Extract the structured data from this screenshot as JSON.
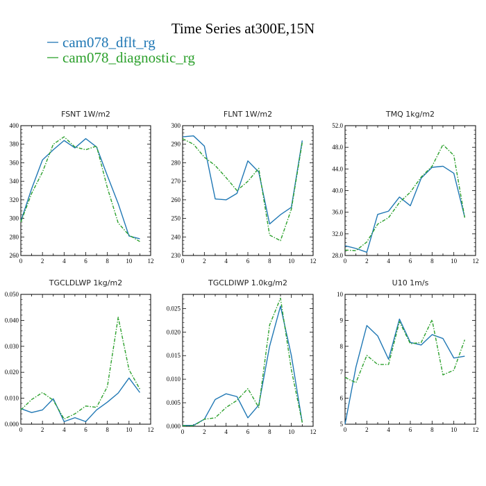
{
  "title": "Time Series at300E,15N",
  "legend": [
    {
      "name": "cam078_dflt_rg",
      "color": "#1f77b4"
    },
    {
      "name": "cam078_diagnostic_rg",
      "color": "#2ca02c"
    }
  ],
  "chart_data": [
    {
      "type": "line",
      "title": "FSNT   1W/m2",
      "xlim": [
        0,
        12
      ],
      "xticks": [
        0,
        2,
        4,
        6,
        8,
        10,
        12
      ],
      "xtick_labels": [
        "0",
        "2",
        "4",
        "6",
        "8",
        "10",
        "12"
      ],
      "ylim": [
        260,
        400
      ],
      "yticks": [
        260,
        280,
        300,
        320,
        340,
        360,
        380,
        400
      ],
      "ytick_labels": [
        "260",
        "280",
        "300",
        "320",
        "340",
        "360",
        "380",
        "400"
      ],
      "x": [
        0,
        1,
        2,
        3,
        4,
        5,
        6,
        7,
        8,
        9,
        10,
        11
      ],
      "series": [
        {
          "name": "cam078_dflt_rg",
          "values": [
            297,
            332,
            363,
            374,
            384,
            376,
            386,
            377,
            346,
            316,
            281,
            278
          ]
        },
        {
          "name": "cam078_diagnostic_rg",
          "values": [
            296,
            327,
            350,
            380,
            388,
            377,
            374,
            378,
            333,
            295,
            282,
            275
          ]
        }
      ]
    },
    {
      "type": "line",
      "title": "FLNT   1W/m2",
      "xlim": [
        0,
        12
      ],
      "xticks": [
        0,
        2,
        4,
        6,
        8,
        10,
        12
      ],
      "xtick_labels": [
        "0",
        "2",
        "4",
        "6",
        "8",
        "10",
        "12"
      ],
      "ylim": [
        230,
        300
      ],
      "yticks": [
        230,
        240,
        250,
        260,
        270,
        280,
        290,
        300
      ],
      "ytick_labels": [
        "230",
        "240",
        "250",
        "260",
        "270",
        "280",
        "290",
        "300"
      ],
      "x": [
        0,
        1,
        2,
        3,
        4,
        5,
        6,
        7,
        8,
        9,
        10,
        11
      ],
      "series": [
        {
          "name": "cam078_dflt_rg",
          "values": [
            294,
            294.5,
            289,
            260.5,
            260,
            263.5,
            281,
            275,
            247,
            252,
            256,
            292
          ]
        },
        {
          "name": "cam078_diagnostic_rg",
          "values": [
            293,
            290,
            283,
            278.5,
            272,
            265,
            270,
            277,
            241,
            238,
            255,
            291
          ]
        }
      ]
    },
    {
      "type": "line",
      "title": "TMQ   1kg/m2",
      "xlim": [
        0,
        12
      ],
      "xticks": [
        0,
        2,
        4,
        6,
        8,
        10,
        12
      ],
      "xtick_labels": [
        "0",
        "2",
        "4",
        "6",
        "8",
        "10",
        "12"
      ],
      "ylim": [
        28,
        52
      ],
      "yticks": [
        28,
        32,
        36,
        40,
        44,
        48,
        52
      ],
      "ytick_labels": [
        "28.0",
        "32.0",
        "36.0",
        "40.0",
        "44.0",
        "48.0",
        "52.0"
      ],
      "x": [
        0,
        1,
        2,
        3,
        4,
        5,
        6,
        7,
        8,
        9,
        10,
        11
      ],
      "series": [
        {
          "name": "cam078_dflt_rg",
          "values": [
            29.8,
            29.3,
            28.6,
            35.6,
            36.2,
            38.8,
            37.2,
            42.3,
            44.3,
            44.5,
            43.2,
            35.1
          ]
        },
        {
          "name": "cam078_diagnostic_rg",
          "values": [
            29.0,
            28.9,
            30.5,
            33.8,
            35.0,
            37.8,
            39.7,
            42.5,
            44.5,
            48.5,
            46.5,
            35.0
          ]
        }
      ]
    },
    {
      "type": "line",
      "title": "TGCLDLWP   1kg/m2",
      "xlim": [
        0,
        12
      ],
      "xticks": [
        0,
        2,
        4,
        6,
        8,
        10,
        12
      ],
      "xtick_labels": [
        "0",
        "2",
        "4",
        "6",
        "8",
        "10",
        "12"
      ],
      "ylim": [
        0,
        0.05
      ],
      "yticks": [
        0,
        0.01,
        0.02,
        0.03,
        0.04,
        0.05
      ],
      "ytick_labels": [
        "0.000",
        "0.010",
        "0.020",
        "0.030",
        "0.040",
        "0.050"
      ],
      "x": [
        0,
        1,
        2,
        3,
        4,
        5,
        6,
        7,
        8,
        9,
        10,
        11
      ],
      "series": [
        {
          "name": "cam078_dflt_rg",
          "values": [
            0.006,
            0.0045,
            0.0055,
            0.0098,
            0.001,
            0.0025,
            0.001,
            0.0055,
            0.0085,
            0.012,
            0.0178,
            0.0122
          ]
        },
        {
          "name": "cam078_diagnostic_rg",
          "values": [
            0.0055,
            0.0095,
            0.0122,
            0.0092,
            0.002,
            0.004,
            0.007,
            0.0065,
            0.0145,
            0.0412,
            0.021,
            0.0135
          ]
        }
      ]
    },
    {
      "type": "line",
      "title": "TGCLDIWP   1.0kg/m2",
      "xlim": [
        0,
        12
      ],
      "xticks": [
        0,
        2,
        4,
        6,
        8,
        10,
        12
      ],
      "xtick_labels": [
        "0",
        "2",
        "4",
        "6",
        "8",
        "10",
        "12"
      ],
      "ylim": [
        0,
        0.028
      ],
      "yticks": [
        0,
        0.005,
        0.01,
        0.015,
        0.02,
        0.025
      ],
      "ytick_labels": [
        "0.000",
        "0.005",
        "0.010",
        "0.015",
        "0.020",
        "0.025"
      ],
      "x": [
        0,
        1,
        2,
        3,
        4,
        5,
        6,
        7,
        8,
        9,
        10,
        11
      ],
      "series": [
        {
          "name": "cam078_dflt_rg",
          "values": [
            0.0002,
            0.0002,
            0.0015,
            0.0057,
            0.0069,
            0.0063,
            0.0018,
            0.0045,
            0.017,
            0.0255,
            0.015,
            0.0008
          ]
        },
        {
          "name": "cam078_diagnostic_rg",
          "values": [
            0.0001,
            0.0001,
            0.0015,
            0.0018,
            0.004,
            0.0055,
            0.008,
            0.004,
            0.0215,
            0.0272,
            0.012,
            0.0008
          ]
        }
      ]
    },
    {
      "type": "line",
      "title": "U10   1m/s",
      "xlim": [
        0,
        12
      ],
      "xticks": [
        0,
        2,
        4,
        6,
        8,
        10,
        12
      ],
      "xtick_labels": [
        "0",
        "2",
        "4",
        "6",
        "8",
        "10",
        "12"
      ],
      "ylim": [
        5,
        10
      ],
      "yticks": [
        5,
        6,
        7,
        8,
        9,
        10
      ],
      "ytick_labels": [
        "5",
        "6",
        "7",
        "8",
        "9",
        "10"
      ],
      "x": [
        0,
        1,
        2,
        3,
        4,
        5,
        6,
        7,
        8,
        9,
        10,
        11
      ],
      "series": [
        {
          "name": "cam078_dflt_rg",
          "values": [
            5.0,
            7.2,
            8.8,
            8.4,
            7.5,
            9.05,
            8.15,
            8.05,
            8.45,
            8.3,
            7.55,
            7.62
          ]
        },
        {
          "name": "cam078_diagnostic_rg",
          "values": [
            6.8,
            6.6,
            7.65,
            7.3,
            7.3,
            8.95,
            8.1,
            8.15,
            9.02,
            6.9,
            7.08,
            8.25
          ]
        }
      ]
    }
  ]
}
